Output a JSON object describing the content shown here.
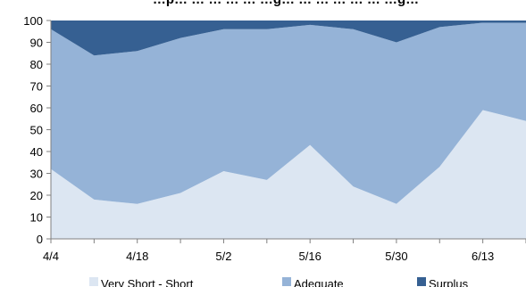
{
  "chart_data": {
    "type": "area",
    "stacked": true,
    "title": "…p… … … … … …g… … … … … … …g…",
    "x": [
      "4/4",
      "4/11",
      "4/18",
      "4/25",
      "5/2",
      "5/9",
      "5/16",
      "5/23",
      "5/30",
      "6/6",
      "6/13",
      "6/20"
    ],
    "x_tick_labels": [
      "4/4",
      "4/18",
      "5/2",
      "5/16",
      "5/30",
      "6/13"
    ],
    "xlabel": "",
    "ylabel": "",
    "ylim": [
      0,
      100
    ],
    "y_ticks": [
      0,
      10,
      20,
      30,
      40,
      50,
      60,
      70,
      80,
      90,
      100
    ],
    "grid": false,
    "legend_position": "bottom",
    "series": [
      {
        "name": "Very Short - Short",
        "color": "#dce6f2",
        "values": [
          32,
          18,
          16,
          21,
          31,
          27,
          43,
          24,
          16,
          33,
          59,
          54
        ]
      },
      {
        "name": "Adequate",
        "color": "#95b3d7",
        "values": [
          64,
          66,
          70,
          71,
          65,
          69,
          55,
          72,
          74,
          64,
          40,
          45
        ]
      },
      {
        "name": "Surplus",
        "color": "#366092",
        "values": [
          4,
          16,
          14,
          8,
          4,
          4,
          2,
          4,
          10,
          3,
          1,
          1
        ]
      }
    ]
  }
}
